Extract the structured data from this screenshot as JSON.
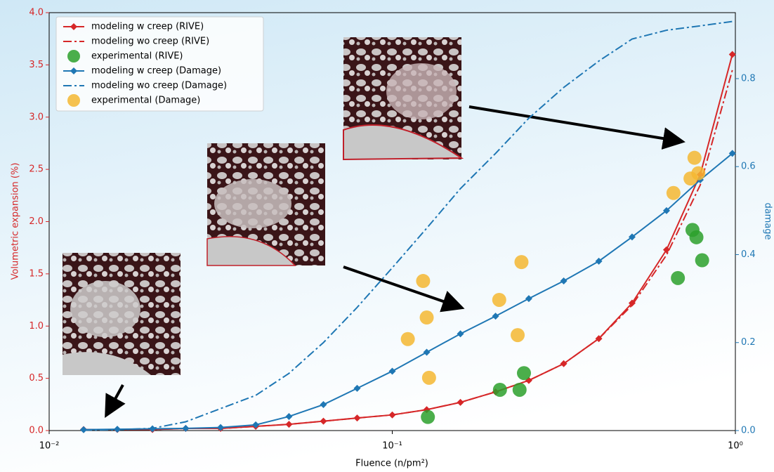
{
  "chart_data": {
    "type": "line",
    "x_label": "Fluence (n/pm²)",
    "y_label": "Volumetric expansion (%)",
    "y2_label": "damage",
    "xscale": "log",
    "xlim": [
      0.01,
      1
    ],
    "ylim": [
      0,
      4
    ],
    "y2lim": [
      0,
      0.95
    ],
    "legend": "upper left",
    "xticks": [
      {
        "value": 0.01,
        "label": "10⁻²"
      },
      {
        "value": 0.1,
        "label": "10⁻¹"
      },
      {
        "value": 1,
        "label": "10⁰"
      }
    ],
    "yticks": [
      {
        "value": 0,
        "label": "0.0"
      },
      {
        "value": 0.5,
        "label": "0.5"
      },
      {
        "value": 1,
        "label": "1.0"
      },
      {
        "value": 1.5,
        "label": "1.5"
      },
      {
        "value": 2,
        "label": "2.0"
      },
      {
        "value": 2.5,
        "label": "2.5"
      },
      {
        "value": 3,
        "label": "3.0"
      },
      {
        "value": 3.5,
        "label": "3.5"
      },
      {
        "value": 4,
        "label": "4.0"
      }
    ],
    "y2ticks": [
      {
        "value": 0,
        "label": "0.0"
      },
      0.2,
      0.4,
      0.6,
      0.8
    ],
    "series": [
      {
        "name": "modeling w creep (RIVE)",
        "color": "#d62728",
        "style": "solid",
        "marker": "diamond",
        "axis": "y",
        "x": [
          0.0126,
          0.0158,
          0.02,
          0.025,
          0.0316,
          0.04,
          0.05,
          0.063,
          0.079,
          0.1,
          0.126,
          0.158,
          0.2,
          0.25,
          0.316,
          0.4,
          0.5,
          0.63,
          0.79,
          0.98
        ],
        "values": [
          0.01,
          0.01,
          0.01,
          0.02,
          0.02,
          0.04,
          0.06,
          0.09,
          0.12,
          0.15,
          0.2,
          0.27,
          0.37,
          0.48,
          0.64,
          0.88,
          1.22,
          1.73,
          2.45,
          3.6
        ]
      },
      {
        "name": "modeling wo creep (RIVE)",
        "color": "#d62728",
        "style": "dashdot",
        "marker": "none",
        "axis": "y",
        "x": [
          0.0126,
          0.0158,
          0.02,
          0.025,
          0.0316,
          0.04,
          0.05,
          0.063,
          0.079,
          0.1,
          0.126,
          0.158,
          0.2,
          0.25,
          0.316,
          0.4,
          0.5,
          0.63,
          0.79,
          0.98
        ],
        "values": [
          0.01,
          0.01,
          0.01,
          0.02,
          0.02,
          0.04,
          0.06,
          0.09,
          0.12,
          0.15,
          0.2,
          0.27,
          0.37,
          0.48,
          0.64,
          0.88,
          1.2,
          1.68,
          2.35,
          3.45
        ]
      },
      {
        "name": "experimental (RIVE)",
        "color": "#2ca02c",
        "style": "none",
        "marker": "circle",
        "axis": "y",
        "x": [
          0.127,
          0.206,
          0.235,
          0.242,
          0.68,
          0.75,
          0.77,
          0.8
        ],
        "values": [
          0.13,
          0.39,
          0.39,
          0.55,
          1.46,
          1.92,
          1.85,
          1.63
        ]
      },
      {
        "name": "modeling w creep (Damage)",
        "color": "#1f77b4",
        "style": "solid",
        "marker": "diamond",
        "axis": "y2",
        "x": [
          0.0126,
          0.0158,
          0.02,
          0.025,
          0.0316,
          0.04,
          0.05,
          0.063,
          0.079,
          0.1,
          0.126,
          0.158,
          0.2,
          0.25,
          0.316,
          0.4,
          0.5,
          0.63,
          0.79,
          0.98
        ],
        "values": [
          0.002,
          0.003,
          0.004,
          0.005,
          0.007,
          0.013,
          0.032,
          0.059,
          0.096,
          0.135,
          0.178,
          0.22,
          0.26,
          0.3,
          0.34,
          0.385,
          0.44,
          0.5,
          0.57,
          0.63
        ]
      },
      {
        "name": "modeling wo creep (Damage)",
        "color": "#1f77b4",
        "style": "dashdot",
        "marker": "none",
        "axis": "y2",
        "x": [
          0.0126,
          0.0158,
          0.02,
          0.025,
          0.0316,
          0.04,
          0.05,
          0.063,
          0.079,
          0.1,
          0.126,
          0.158,
          0.2,
          0.25,
          0.316,
          0.4,
          0.5,
          0.63,
          0.79,
          0.98
        ],
        "values": [
          0.001,
          0.002,
          0.005,
          0.02,
          0.05,
          0.08,
          0.13,
          0.2,
          0.28,
          0.37,
          0.46,
          0.55,
          0.63,
          0.71,
          0.78,
          0.84,
          0.89,
          0.91,
          0.92,
          0.93
        ]
      },
      {
        "name": "experimental (Damage)",
        "color": "#f5b731",
        "style": "none",
        "marker": "circle",
        "axis": "y2",
        "x": [
          0.123,
          0.126,
          0.111,
          0.128,
          0.205,
          0.238,
          0.232,
          0.66,
          0.74,
          0.76,
          0.78
        ],
        "values": [
          0.34,
          0.257,
          0.208,
          0.12,
          0.297,
          0.383,
          0.217,
          0.54,
          0.573,
          0.62,
          0.585
        ]
      }
    ]
  }
}
